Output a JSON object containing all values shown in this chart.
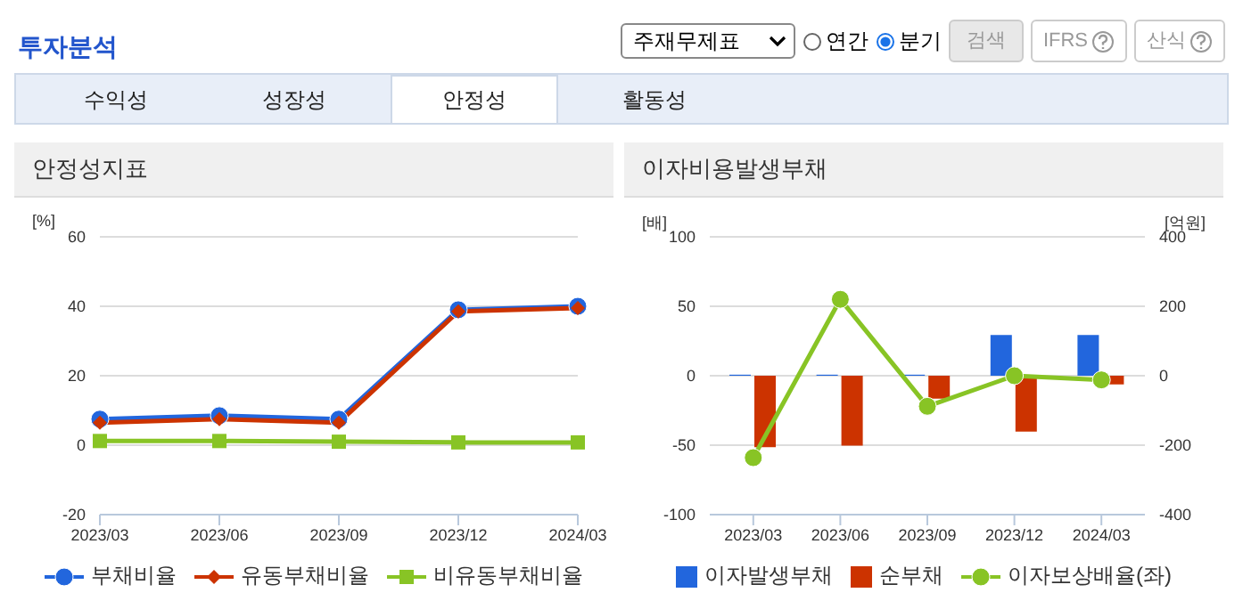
{
  "chart_data": [
    {
      "type": "other",
      "title": "투자분석",
      "annotations": [
        "주재무제표",
        "연간",
        "분기",
        "검색",
        "IFRS",
        "산식",
        "수익성",
        "성장성",
        "안정성",
        "활동성"
      ]
    },
    {
      "type": "line",
      "title": "안정성지표",
      "ylabel": "[%]",
      "categories": [
        "2023/03",
        "2023/06",
        "2023/09",
        "2023/12",
        "2024/03"
      ],
      "ylim": [
        -20,
        60
      ],
      "yticks": [
        -20,
        0,
        20,
        40,
        60
      ],
      "grid": "y",
      "legend": "bottom",
      "series": [
        {
          "name": "부채비율",
          "color": "#2266dd",
          "marker": "circle",
          "values": [
            7.5,
            8.5,
            7.5,
            39,
            40
          ]
        },
        {
          "name": "유동부채비율",
          "color": "#cc3300",
          "marker": "diamond",
          "values": [
            6.5,
            7.5,
            6.5,
            38.5,
            39.5
          ]
        },
        {
          "name": "비유동부채비율",
          "color": "#88c425",
          "marker": "square",
          "values": [
            1.2,
            1.2,
            1,
            0.8,
            0.8
          ]
        }
      ]
    },
    {
      "type": "bar",
      "title": "이자비용발생부채",
      "ylabel": "[배]",
      "y2label": "[억원]",
      "categories": [
        "2023/03",
        "2023/06",
        "2023/09",
        "2023/12",
        "2024/03"
      ],
      "ylim": [
        -100,
        100
      ],
      "yticks": [
        -100,
        -50,
        0,
        50,
        100
      ],
      "y2lim": [
        -400,
        400
      ],
      "y2ticks": [
        -400,
        -200,
        0,
        200,
        400
      ],
      "grid": "y",
      "legend": "bottom",
      "series": [
        {
          "name": "이자발생부채",
          "color": "#2266dd",
          "axis": "y2",
          "values": [
            3,
            3,
            3,
            117,
            117
          ]
        },
        {
          "name": "순부채",
          "color": "#cc3300",
          "axis": "y2",
          "values": [
            -206,
            -201,
            -66,
            -161,
            -25
          ]
        },
        {
          "name": "이자보상배율(좌)",
          "type": "line",
          "color": "#88c425",
          "marker": "circle",
          "axis": "y",
          "values": [
            -59,
            55,
            -22,
            0,
            -3
          ]
        }
      ]
    }
  ]
}
